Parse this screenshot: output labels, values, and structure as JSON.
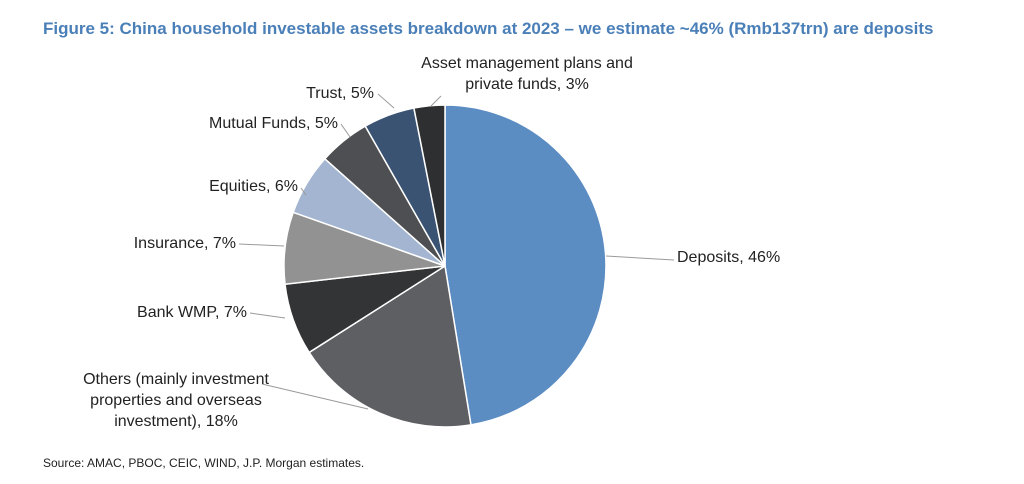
{
  "chart_data": {
    "type": "pie",
    "title": "Figure 5: China household investable assets breakdown at 2023 – we estimate ~46% (Rmb137trn) are deposits",
    "source": "Source: AMAC, PBOC, CEIC, WIND, J.P. Morgan estimates.",
    "slices": [
      {
        "name": "Deposits",
        "value": 46,
        "label_lines": [
          "Deposits, 46%"
        ],
        "color": "#5b8cc2"
      },
      {
        "name": "Others (mainly investment properties and overseas investment)",
        "value": 18,
        "label_lines": [
          "Others (mainly investment",
          "properties and overseas",
          "investment), 18%"
        ],
        "color": "#5e5f63"
      },
      {
        "name": "Bank WMP",
        "value": 7,
        "label_lines": [
          "Bank WMP, 7%"
        ],
        "color": "#333435"
      },
      {
        "name": "Insurance",
        "value": 7,
        "label_lines": [
          "Insurance, 7%"
        ],
        "color": "#929292"
      },
      {
        "name": "Equities",
        "value": 6,
        "label_lines": [
          "Equities, 6%"
        ],
        "color": "#a3b5d0"
      },
      {
        "name": "Mutual Funds",
        "value": 5,
        "label_lines": [
          "Mutual Funds, 5%"
        ],
        "color": "#4e4f52"
      },
      {
        "name": "Trust",
        "value": 5,
        "label_lines": [
          "Trust, 5%"
        ],
        "color": "#3a5373"
      },
      {
        "name": "Asset management plans and private funds",
        "value": 3,
        "label_lines": [
          "Asset management plans and",
          "private funds, 3%"
        ],
        "color": "#2e2f30"
      }
    ]
  }
}
